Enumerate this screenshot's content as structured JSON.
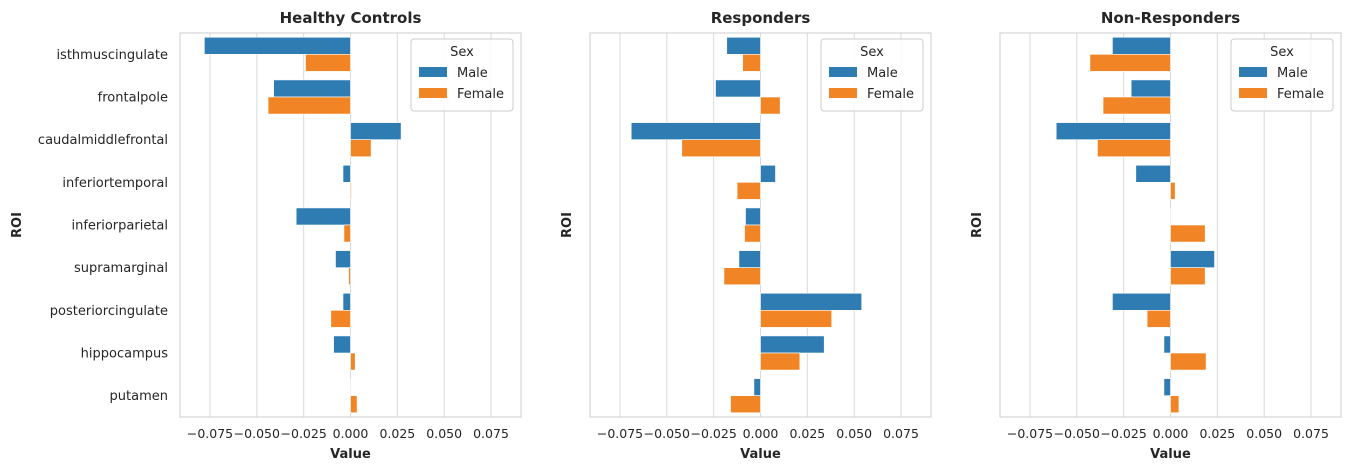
{
  "chart_data": [
    {
      "type": "bar",
      "orientation": "horizontal",
      "title": "Healthy Controls",
      "xlabel": "Value",
      "ylabel": "ROI",
      "categories": [
        "isthmuscingulate",
        "frontalpole",
        "caudalmiddlefrontal",
        "inferiortemporal",
        "inferiorparietal",
        "supramarginal",
        "posteriorcingulate",
        "hippocampus",
        "putamen"
      ],
      "series": [
        {
          "name": "Male",
          "values": [
            -0.078,
            -0.041,
            0.027,
            -0.004,
            -0.029,
            -0.008,
            -0.004,
            -0.009,
            0.0
          ]
        },
        {
          "name": "Female",
          "values": [
            -0.024,
            -0.044,
            0.011,
            0.0005,
            -0.0035,
            -0.001,
            -0.0105,
            0.0025,
            0.0035
          ]
        }
      ],
      "xticks": [
        "−0.075",
        "−0.050",
        "−0.025",
        "0.000",
        "0.025",
        "0.050",
        "0.075"
      ],
      "xlim": [
        -0.091,
        0.091
      ],
      "grid": "vertical",
      "legend": {
        "title": "Sex",
        "position": "top-right",
        "entries": [
          "Male",
          "Female"
        ]
      }
    },
    {
      "type": "bar",
      "orientation": "horizontal",
      "title": "Responders",
      "xlabel": "Value",
      "ylabel": "ROI",
      "categories": [
        "isthmuscingulate",
        "frontalpole",
        "caudalmiddlefrontal",
        "inferiortemporal",
        "inferiorparietal",
        "supramarginal",
        "posteriorcingulate",
        "hippocampus",
        "putamen"
      ],
      "series": [
        {
          "name": "Male",
          "values": [
            -0.018,
            -0.024,
            -0.069,
            0.008,
            -0.008,
            -0.0115,
            0.054,
            0.034,
            -0.0035
          ]
        },
        {
          "name": "Female",
          "values": [
            -0.0095,
            0.0105,
            -0.042,
            -0.0125,
            -0.0085,
            -0.0195,
            0.038,
            0.021,
            -0.016
          ]
        }
      ],
      "xticks": [
        "−0.075",
        "−0.050",
        "−0.025",
        "0.000",
        "0.025",
        "0.050",
        "0.075"
      ],
      "xlim": [
        -0.091,
        0.091
      ],
      "grid": "vertical",
      "legend": {
        "title": "Sex",
        "position": "top-right",
        "entries": [
          "Male",
          "Female"
        ]
      }
    },
    {
      "type": "bar",
      "orientation": "horizontal",
      "title": "Non-Responders",
      "xlabel": "Value",
      "ylabel": "ROI",
      "categories": [
        "isthmuscingulate",
        "frontalpole",
        "caudalmiddlefrontal",
        "inferiortemporal",
        "inferiorparietal",
        "supramarginal",
        "posteriorcingulate",
        "hippocampus",
        "putamen"
      ],
      "series": [
        {
          "name": "Male",
          "values": [
            -0.031,
            -0.021,
            -0.061,
            -0.0185,
            0.0,
            0.0235,
            -0.031,
            -0.0035,
            -0.0035
          ]
        },
        {
          "name": "Female",
          "values": [
            -0.043,
            -0.036,
            -0.039,
            0.0025,
            0.0185,
            0.0185,
            -0.0125,
            0.019,
            0.0045
          ]
        }
      ],
      "xticks": [
        "−0.075",
        "−0.050",
        "−0.025",
        "0.000",
        "0.025",
        "0.050",
        "0.075"
      ],
      "xlim": [
        -0.091,
        0.091
      ],
      "grid": "vertical",
      "legend": {
        "title": "Sex",
        "position": "top-right",
        "entries": [
          "Male",
          "Female"
        ]
      }
    }
  ],
  "colors": {
    "Male": "#2e7cb2",
    "Female": "#f18526",
    "grid": "#d9d9d9",
    "spine": "#cccccc",
    "text": "#262626"
  }
}
